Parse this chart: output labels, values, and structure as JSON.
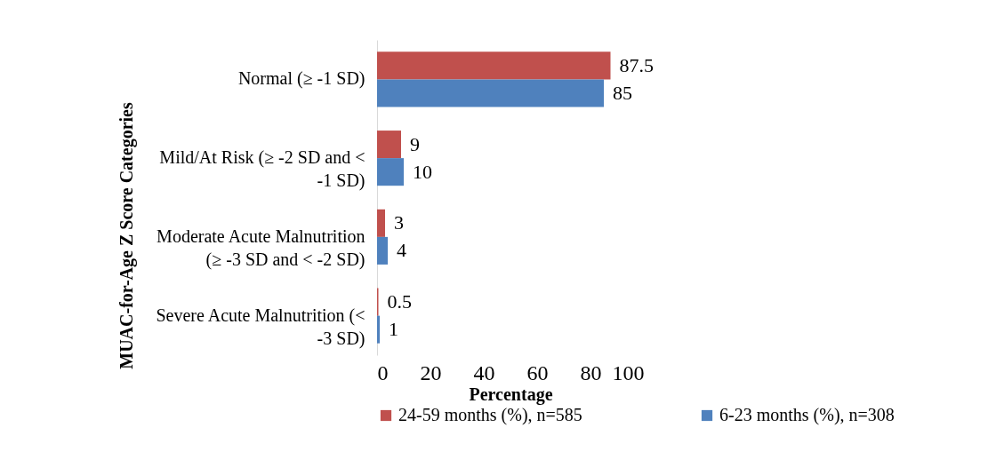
{
  "chart_data": {
    "type": "bar",
    "orientation": "horizontal",
    "categories": [
      "Normal (≥ -1 SD)",
      "Mild/At Risk (≥ -2 SD and < -1 SD)",
      "Moderate Acute Malnutrition (≥ -3 SD and < -2 SD)",
      "Severe Acute Malnutrition (< -3 SD)"
    ],
    "series": [
      {
        "name": "24-59 months (%), n=585",
        "color": "#c0504d",
        "values": [
          87.5,
          9,
          3,
          0.5
        ]
      },
      {
        "name": "6-23 months (%), n=308",
        "color": "#4f81bd",
        "values": [
          85,
          10,
          4,
          1
        ]
      }
    ],
    "xlim": [
      0,
      100
    ],
    "xticks": [
      0,
      20,
      40,
      60,
      80,
      100
    ],
    "xlabel": "Percentage",
    "ylabel": "MUAC-for-Age Z Score Categories",
    "data_labels": true,
    "legend": "bottom",
    "grid": false
  }
}
